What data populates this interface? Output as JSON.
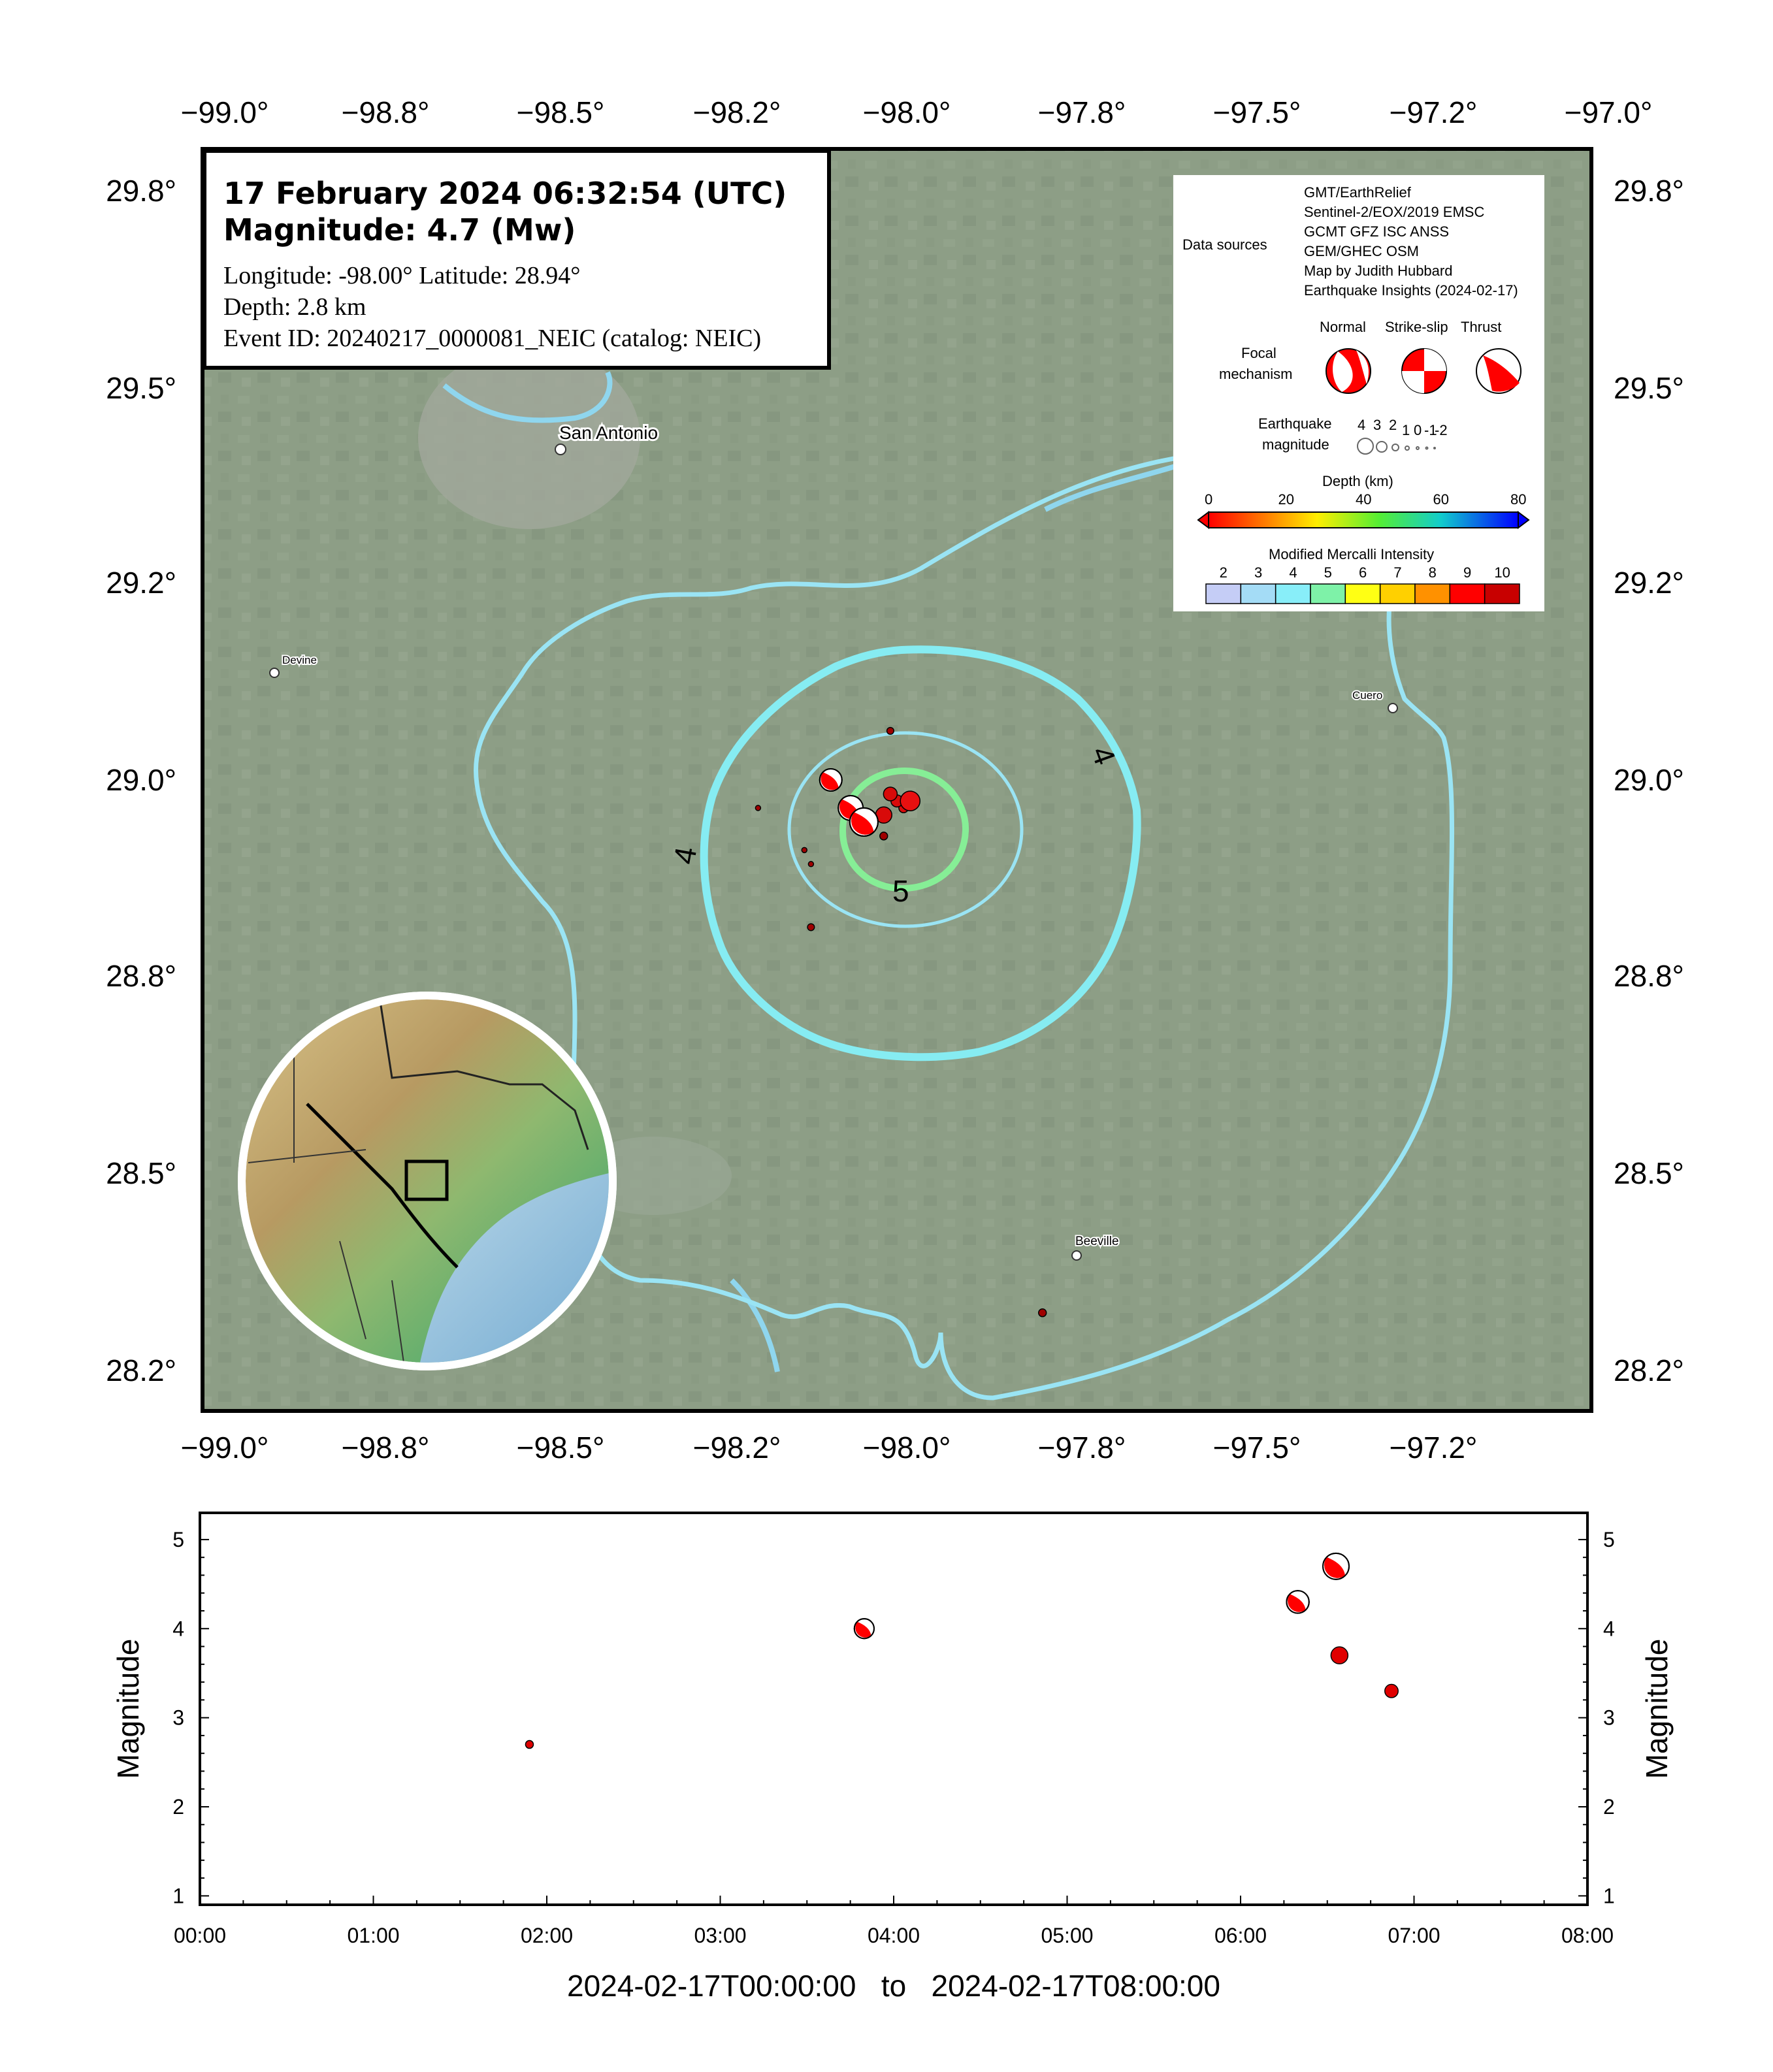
{
  "title": {
    "line1": "17 February 2024 06:32:54 (UTC)",
    "line2": "Magnitude: 4.7 (Mw)",
    "coords": "Longitude: -98.00°  Latitude: 28.94°",
    "depth": "Depth: 2.8 km",
    "event": "Event ID: 20240217_0000081_NEIC (catalog: NEIC)"
  },
  "map": {
    "lon_ticks": [
      "−99.0°",
      "−98.8°",
      "−98.5°",
      "−98.2°",
      "−98.0°",
      "−97.8°",
      "−97.5°",
      "−97.2°",
      "−97.0°"
    ],
    "lat_ticks": [
      "29.8°",
      "29.5°",
      "29.2°",
      "29.0°",
      "28.8°",
      "28.5°",
      "28.2°"
    ],
    "towns": [
      {
        "name": "San Antonio",
        "lon": -98.49,
        "lat": 29.42
      },
      {
        "name": "Devine",
        "lon": -98.9,
        "lat": 29.14
      },
      {
        "name": "Cuero",
        "lon": -97.29,
        "lat": 29.09
      },
      {
        "name": "Beeville",
        "lon": -97.75,
        "lat": 28.4
      }
    ],
    "contour_labels": [
      "4",
      "4",
      "5"
    ],
    "events": [
      {
        "lon": -98.0,
        "lat": 28.94,
        "mag": 4.7,
        "mech": true
      },
      {
        "lon": -98.02,
        "lat": 28.96,
        "mag": 4.3,
        "mech": true
      },
      {
        "lon": -98.05,
        "lat": 29.0,
        "mag": 4.0,
        "mech": true
      },
      {
        "lon": -97.93,
        "lat": 28.97,
        "mag": 3.7,
        "mech": false
      },
      {
        "lon": -97.97,
        "lat": 28.95,
        "mag": 3.3,
        "mech": false
      },
      {
        "lon": -97.96,
        "lat": 28.98,
        "mag": 3.0,
        "mech": false
      },
      {
        "lon": -97.95,
        "lat": 28.97,
        "mag": 2.8,
        "mech": false
      },
      {
        "lon": -97.94,
        "lat": 28.96,
        "mag": 2.5,
        "mech": false
      },
      {
        "lon": -97.97,
        "lat": 28.92,
        "mag": 2.3,
        "mech": false
      },
      {
        "lon": -97.96,
        "lat": 29.07,
        "mag": 2.2,
        "mech": false
      },
      {
        "lon": -98.16,
        "lat": 28.96,
        "mag": 2.0,
        "mech": false
      },
      {
        "lon": -98.09,
        "lat": 28.9,
        "mag": 2.0,
        "mech": false
      },
      {
        "lon": -98.08,
        "lat": 28.88,
        "mag": 2.0,
        "mech": false
      },
      {
        "lon": -98.08,
        "lat": 28.79,
        "mag": 2.2,
        "mech": false
      },
      {
        "lon": -97.73,
        "lat": 28.24,
        "mag": 2.3,
        "mech": false
      }
    ],
    "colors": {
      "imagery": "#8d9e86",
      "river": "#8fd6ee",
      "mmi3": "#9ae4f4",
      "mmi4": "#86ecf2",
      "mmi5": "#86ee96"
    }
  },
  "legend": {
    "data_sources_label": "Data sources",
    "data_sources": [
      "GMT/EarthRelief",
      "Sentinel-2/EOX/2019 EMSC",
      "GCMT GFZ ISC ANSS",
      "GEM/GHEC OSM",
      "Map by Judith Hubbard",
      "Earthquake Insights (2024-02-17)"
    ],
    "mech_types": [
      "Normal",
      "Strike-slip",
      "Thrust"
    ],
    "focal_label_1": "Focal",
    "focal_label_2": "mechanism",
    "mag_label_1": "Earthquake",
    "mag_label_2": "magnitude",
    "mag_values": [
      "4",
      "3",
      "2",
      "1",
      "0",
      "-1",
      "-2"
    ],
    "depth_title": "Depth (km)",
    "depth_ticks": [
      "0",
      "20",
      "40",
      "60",
      "80"
    ],
    "mmi_title": "Modified Mercalli Intensity",
    "mmi_ticks": [
      "2",
      "3",
      "4",
      "5",
      "6",
      "7",
      "8",
      "9",
      "10"
    ],
    "mmi_colors": [
      "#c5cdf6",
      "#a4dcf6",
      "#88eef9",
      "#7ef2a8",
      "#ffff14",
      "#ffd000",
      "#ff9100",
      "#ff0000",
      "#c80000"
    ]
  },
  "timeline": {
    "ylabel": "Magnitude",
    "y_ticks": [
      "1",
      "2",
      "3",
      "4",
      "5"
    ],
    "x_ticks": [
      "00:00",
      "01:00",
      "02:00",
      "03:00",
      "04:00",
      "05:00",
      "06:00",
      "07:00",
      "08:00"
    ],
    "xlabel": "2024-02-17T00:00:00   to   2024-02-17T08:00:00",
    "ylim": [
      0.9,
      5.3
    ],
    "xlim_hours": [
      0,
      8
    ]
  },
  "chart_data": {
    "type": "scatter",
    "xlabel": "2024-02-17T00:00:00   to   2024-02-17T08:00:00",
    "ylabel": "Magnitude",
    "x_hours": [
      1.9,
      3.83,
      6.33,
      6.55,
      6.57,
      6.87
    ],
    "x": [
      "01:54",
      "03:50",
      "06:20",
      "06:33",
      "06:34",
      "06:52"
    ],
    "values": [
      2.7,
      4.0,
      4.3,
      4.7,
      3.7,
      3.3
    ],
    "mech": [
      false,
      true,
      true,
      true,
      false,
      false
    ],
    "ylim": [
      0.9,
      5.3
    ]
  }
}
